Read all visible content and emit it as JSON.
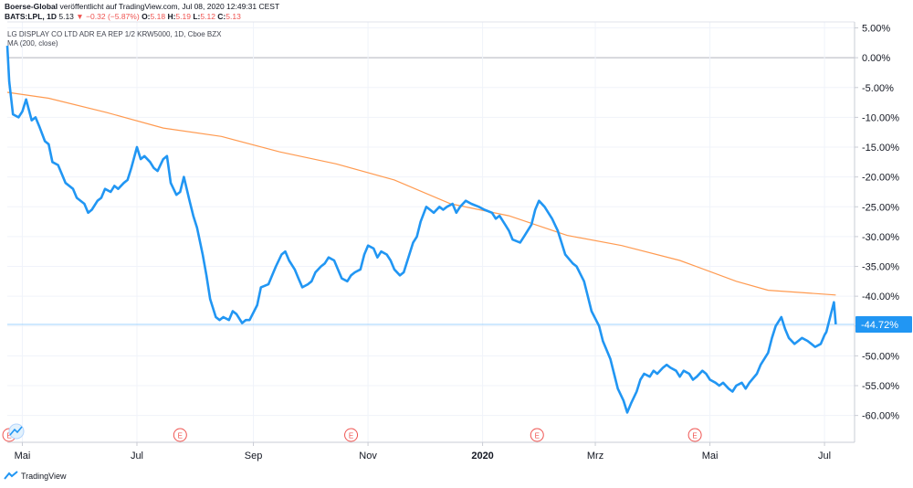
{
  "header": {
    "publisher": "Boerse-Global",
    "published_text": "veröffentlicht auf TradingView.com, Jul 08, 2020 12:49:31 CEST",
    "symbol": "BATS:LPL, 1D",
    "last": "5.13",
    "change_arrow": "▼",
    "change": "−0.32 (−5.87%)",
    "o_label": "O:",
    "o_value": "5.18",
    "h_label": "H:",
    "h_value": "5.19",
    "l_label": "L:",
    "l_value": "5.12",
    "c_label": "C:",
    "c_value": "5.13"
  },
  "chart_data": {
    "type": "line",
    "title": "LG DISPLAY CO LTD ADR EA REP 1/2 KRW5000, 1D, Cboe BZX",
    "yunit": "%",
    "ylim": [
      -64.5,
      6
    ],
    "yticks": [
      5,
      0,
      -5,
      -10,
      -15,
      -20,
      -25,
      -30,
      -35,
      -40,
      -45,
      -50,
      -55,
      -60
    ],
    "ytick_labels": [
      "5.00%",
      "0.00%",
      "-5.00%",
      "-10.00%",
      "-15.00%",
      "-20.00%",
      "-25.00%",
      "-30.00%",
      "-35.00%",
      "-40.00%",
      "-45.00%",
      "-50.00%",
      "-55.00%",
      "-60.00%"
    ],
    "xlim": [
      "2019-04-23",
      "2020-07-17"
    ],
    "xticks": [
      {
        "date": "2019-05-01",
        "label": "Mai",
        "bold": false
      },
      {
        "date": "2019-07-01",
        "label": "Jul",
        "bold": false
      },
      {
        "date": "2019-09-01",
        "label": "Sep",
        "bold": false
      },
      {
        "date": "2019-11-01",
        "label": "Nov",
        "bold": false
      },
      {
        "date": "2020-01-01",
        "label": "2020",
        "bold": true
      },
      {
        "date": "2020-03-01",
        "label": "Mrz",
        "bold": false
      },
      {
        "date": "2020-05-01",
        "label": "Mai",
        "bold": false
      },
      {
        "date": "2020-07-01",
        "label": "Jul",
        "bold": false
      }
    ],
    "last_value_label": "-44.72%",
    "last_value": -44.72,
    "earnings_marker": "E",
    "earnings_dates": [
      "2019-04-24",
      "2019-07-24",
      "2019-10-23",
      "2020-01-30",
      "2020-04-23"
    ],
    "grid": true,
    "series": [
      {
        "name": "LG DISPLAY CO LTD ADR EA REP 1/2 KRW5000, 1D, Cboe BZX",
        "color": "#2196f3",
        "points": [
          [
            "2019-04-23",
            2.0
          ],
          [
            "2019-04-24",
            -4.0
          ],
          [
            "2019-04-26",
            -9.5
          ],
          [
            "2019-04-29",
            -10.0
          ],
          [
            "2019-05-01",
            -9.0
          ],
          [
            "2019-05-03",
            -7.0
          ],
          [
            "2019-05-06",
            -10.5
          ],
          [
            "2019-05-08",
            -10.0
          ],
          [
            "2019-05-10",
            -11.5
          ],
          [
            "2019-05-13",
            -14.0
          ],
          [
            "2019-05-15",
            -14.5
          ],
          [
            "2019-05-17",
            -17.5
          ],
          [
            "2019-05-20",
            -18.0
          ],
          [
            "2019-05-22",
            -19.5
          ],
          [
            "2019-05-24",
            -21.0
          ],
          [
            "2019-05-28",
            -22.0
          ],
          [
            "2019-05-30",
            -23.5
          ],
          [
            "2019-06-03",
            -24.5
          ],
          [
            "2019-06-05",
            -26.0
          ],
          [
            "2019-06-07",
            -25.5
          ],
          [
            "2019-06-10",
            -24.0
          ],
          [
            "2019-06-12",
            -23.5
          ],
          [
            "2019-06-14",
            -22.0
          ],
          [
            "2019-06-17",
            -22.5
          ],
          [
            "2019-06-19",
            -21.5
          ],
          [
            "2019-06-21",
            -22.0
          ],
          [
            "2019-06-24",
            -21.0
          ],
          [
            "2019-06-26",
            -20.5
          ],
          [
            "2019-06-28",
            -18.5
          ],
          [
            "2019-07-01",
            -15.0
          ],
          [
            "2019-07-03",
            -17.0
          ],
          [
            "2019-07-05",
            -16.5
          ],
          [
            "2019-07-08",
            -17.5
          ],
          [
            "2019-07-10",
            -18.5
          ],
          [
            "2019-07-12",
            -19.0
          ],
          [
            "2019-07-15",
            -17.0
          ],
          [
            "2019-07-17",
            -16.5
          ],
          [
            "2019-07-19",
            -21.0
          ],
          [
            "2019-07-22",
            -23.0
          ],
          [
            "2019-07-24",
            -22.5
          ],
          [
            "2019-07-26",
            -20.0
          ],
          [
            "2019-07-29",
            -24.0
          ],
          [
            "2019-07-31",
            -26.5
          ],
          [
            "2019-08-02",
            -28.5
          ],
          [
            "2019-08-05",
            -33.0
          ],
          [
            "2019-08-07",
            -36.5
          ],
          [
            "2019-08-09",
            -40.5
          ],
          [
            "2019-08-12",
            -43.5
          ],
          [
            "2019-08-14",
            -44.0
          ],
          [
            "2019-08-16",
            -43.5
          ],
          [
            "2019-08-19",
            -44.0
          ],
          [
            "2019-08-21",
            -42.5
          ],
          [
            "2019-08-23",
            -43.0
          ],
          [
            "2019-08-26",
            -44.5
          ],
          [
            "2019-08-28",
            -44.0
          ],
          [
            "2019-08-30",
            -44.0
          ],
          [
            "2019-09-03",
            -41.5
          ],
          [
            "2019-09-05",
            -38.5
          ],
          [
            "2019-09-09",
            -38.0
          ],
          [
            "2019-09-11",
            -36.5
          ],
          [
            "2019-09-13",
            -35.0
          ],
          [
            "2019-09-16",
            -33.0
          ],
          [
            "2019-09-18",
            -32.5
          ],
          [
            "2019-09-20",
            -34.0
          ],
          [
            "2019-09-23",
            -35.5
          ],
          [
            "2019-09-25",
            -37.0
          ],
          [
            "2019-09-27",
            -38.5
          ],
          [
            "2019-09-30",
            -38.0
          ],
          [
            "2019-10-02",
            -37.5
          ],
          [
            "2019-10-04",
            -36.0
          ],
          [
            "2019-10-07",
            -35.0
          ],
          [
            "2019-10-09",
            -34.5
          ],
          [
            "2019-10-11",
            -33.5
          ],
          [
            "2019-10-14",
            -34.0
          ],
          [
            "2019-10-16",
            -35.5
          ],
          [
            "2019-10-18",
            -37.0
          ],
          [
            "2019-10-21",
            -37.5
          ],
          [
            "2019-10-23",
            -36.5
          ],
          [
            "2019-10-25",
            -36.0
          ],
          [
            "2019-10-28",
            -35.5
          ],
          [
            "2019-10-30",
            -33.0
          ],
          [
            "2019-11-01",
            -31.5
          ],
          [
            "2019-11-04",
            -32.0
          ],
          [
            "2019-11-06",
            -33.5
          ],
          [
            "2019-11-08",
            -32.5
          ],
          [
            "2019-11-11",
            -33.0
          ],
          [
            "2019-11-13",
            -34.0
          ],
          [
            "2019-11-15",
            -35.5
          ],
          [
            "2019-11-18",
            -36.5
          ],
          [
            "2019-11-20",
            -36.0
          ],
          [
            "2019-11-22",
            -34.0
          ],
          [
            "2019-11-25",
            -31.0
          ],
          [
            "2019-11-27",
            -30.0
          ],
          [
            "2019-11-29",
            -27.5
          ],
          [
            "2019-12-02",
            -25.0
          ],
          [
            "2019-12-04",
            -25.5
          ],
          [
            "2019-12-06",
            -26.0
          ],
          [
            "2019-12-09",
            -25.0
          ],
          [
            "2019-12-11",
            -25.5
          ],
          [
            "2019-12-13",
            -25.0
          ],
          [
            "2019-12-16",
            -24.5
          ],
          [
            "2019-12-18",
            -26.0
          ],
          [
            "2019-12-20",
            -25.0
          ],
          [
            "2019-12-23",
            -24.0
          ],
          [
            "2019-12-26",
            -24.5
          ],
          [
            "2019-12-30",
            -25.0
          ],
          [
            "2020-01-02",
            -25.5
          ],
          [
            "2020-01-06",
            -26.0
          ],
          [
            "2020-01-08",
            -27.0
          ],
          [
            "2020-01-10",
            -26.5
          ],
          [
            "2020-01-13",
            -28.0
          ],
          [
            "2020-01-15",
            -29.0
          ],
          [
            "2020-01-17",
            -30.5
          ],
          [
            "2020-01-21",
            -31.0
          ],
          [
            "2020-01-23",
            -30.0
          ],
          [
            "2020-01-27",
            -28.0
          ],
          [
            "2020-01-29",
            -25.5
          ],
          [
            "2020-01-31",
            -24.0
          ],
          [
            "2020-02-03",
            -25.0
          ],
          [
            "2020-02-05",
            -26.0
          ],
          [
            "2020-02-07",
            -27.0
          ],
          [
            "2020-02-10",
            -29.0
          ],
          [
            "2020-02-12",
            -31.0
          ],
          [
            "2020-02-14",
            -33.0
          ],
          [
            "2020-02-18",
            -34.5
          ],
          [
            "2020-02-20",
            -35.0
          ],
          [
            "2020-02-24",
            -37.5
          ],
          [
            "2020-02-26",
            -40.0
          ],
          [
            "2020-02-28",
            -42.5
          ],
          [
            "2020-03-03",
            -45.0
          ],
          [
            "2020-03-05",
            -47.5
          ],
          [
            "2020-03-09",
            -50.5
          ],
          [
            "2020-03-11",
            -53.0
          ],
          [
            "2020-03-13",
            -55.5
          ],
          [
            "2020-03-16",
            -57.5
          ],
          [
            "2020-03-18",
            -59.5
          ],
          [
            "2020-03-20",
            -58.0
          ],
          [
            "2020-03-23",
            -56.0
          ],
          [
            "2020-03-25",
            -54.0
          ],
          [
            "2020-03-27",
            -53.0
          ],
          [
            "2020-03-30",
            -53.5
          ],
          [
            "2020-04-01",
            -52.5
          ],
          [
            "2020-04-03",
            -53.0
          ],
          [
            "2020-04-06",
            -52.0
          ],
          [
            "2020-04-08",
            -51.5
          ],
          [
            "2020-04-10",
            -52.0
          ],
          [
            "2020-04-13",
            -52.5
          ],
          [
            "2020-04-15",
            -53.5
          ],
          [
            "2020-04-17",
            -52.5
          ],
          [
            "2020-04-20",
            -53.0
          ],
          [
            "2020-04-22",
            -54.0
          ],
          [
            "2020-04-24",
            -53.5
          ],
          [
            "2020-04-27",
            -52.5
          ],
          [
            "2020-04-29",
            -53.0
          ],
          [
            "2020-05-01",
            -54.0
          ],
          [
            "2020-05-04",
            -54.5
          ],
          [
            "2020-05-06",
            -55.0
          ],
          [
            "2020-05-08",
            -54.5
          ],
          [
            "2020-05-11",
            -55.5
          ],
          [
            "2020-05-13",
            -56.0
          ],
          [
            "2020-05-15",
            -55.0
          ],
          [
            "2020-05-18",
            -54.5
          ],
          [
            "2020-05-20",
            -55.5
          ],
          [
            "2020-05-22",
            -54.5
          ],
          [
            "2020-05-26",
            -53.0
          ],
          [
            "2020-05-28",
            -51.5
          ],
          [
            "2020-06-01",
            -49.5
          ],
          [
            "2020-06-03",
            -47.0
          ],
          [
            "2020-06-05",
            -45.0
          ],
          [
            "2020-06-08",
            -43.5
          ],
          [
            "2020-06-10",
            -45.5
          ],
          [
            "2020-06-12",
            -47.0
          ],
          [
            "2020-06-15",
            -48.0
          ],
          [
            "2020-06-17",
            -47.5
          ],
          [
            "2020-06-19",
            -47.0
          ],
          [
            "2020-06-22",
            -47.5
          ],
          [
            "2020-06-24",
            -48.0
          ],
          [
            "2020-06-26",
            -48.5
          ],
          [
            "2020-06-29",
            -48.0
          ],
          [
            "2020-07-01",
            -46.5
          ],
          [
            "2020-07-02",
            -46.0
          ],
          [
            "2020-07-06",
            -41.0
          ],
          [
            "2020-07-07",
            -44.72
          ]
        ]
      },
      {
        "name": "MA (200, close)",
        "color": "#ff9a50",
        "points": [
          [
            "2019-04-23",
            -5.8
          ],
          [
            "2019-05-15",
            -6.8
          ],
          [
            "2019-06-15",
            -9.2
          ],
          [
            "2019-07-15",
            -11.8
          ],
          [
            "2019-08-15",
            -13.2
          ],
          [
            "2019-09-15",
            -15.8
          ],
          [
            "2019-10-15",
            -17.8
          ],
          [
            "2019-11-15",
            -20.5
          ],
          [
            "2019-12-15",
            -24.5
          ],
          [
            "2020-01-15",
            -26.5
          ],
          [
            "2020-02-15",
            -29.8
          ],
          [
            "2020-03-15",
            -31.5
          ],
          [
            "2020-04-15",
            -34.0
          ],
          [
            "2020-05-15",
            -37.5
          ],
          [
            "2020-06-01",
            -39.0
          ],
          [
            "2020-07-07",
            -39.8
          ]
        ]
      }
    ]
  }
}
